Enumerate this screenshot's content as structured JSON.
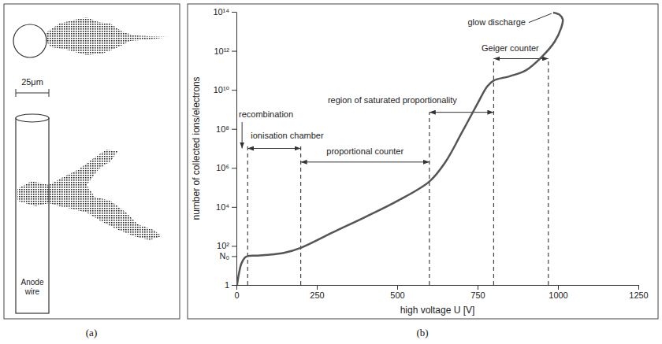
{
  "diagram": {
    "label": "(a)",
    "scale_label": "25μm",
    "wire_label": "Anode wire"
  },
  "chart_data": {
    "type": "line",
    "panel_label": "(b)",
    "x_label": "high voltage U [V]",
    "y_label": "number of collected ions/electrons",
    "x": [
      2,
      8,
      15,
      25,
      35,
      60,
      100,
      150,
      200,
      300,
      400,
      500,
      600,
      650,
      700,
      750,
      780,
      800,
      850,
      900,
      950,
      990,
      1010,
      1015,
      1005,
      985
    ],
    "series": [
      {
        "color": "#555555",
        "values": [
          1,
          4,
          12,
          24,
          30,
          32,
          35,
          45,
          80,
          500,
          3000,
          20000,
          200000,
          2000000,
          60000000,
          2000000000,
          15000000000,
          30000000000,
          50000000000,
          100000000000,
          500000000000,
          3000000000000,
          15000000000000,
          40000000000000,
          70000000000000,
          90000000000000
        ]
      }
    ],
    "xlim": [
      0,
      1250
    ],
    "xticks": [
      0,
      250,
      500,
      750,
      1000,
      1250
    ],
    "ylim": [
      1,
      100000000000000
    ],
    "yticks": [
      1,
      {
        "value": 30,
        "label": "N₀"
      },
      {
        "value": 100,
        "label": "10²"
      },
      {
        "value": 10000,
        "label": "10⁴"
      },
      {
        "value": 1000000,
        "label": "10⁶"
      },
      {
        "value": 100000000,
        "label": "10⁸"
      },
      {
        "value": 10000000000,
        "label": "10¹⁰"
      },
      {
        "value": 1000000000000,
        "label": "10¹²"
      },
      {
        "value": 100000000000000,
        "label": "10¹⁴"
      }
    ],
    "log": "y",
    "regions": [
      {
        "label": "recombination",
        "from": 0,
        "to": 35
      },
      {
        "label": "ionisation chamber",
        "from": 35,
        "to": 200
      },
      {
        "label": "proportional counter",
        "from": 200,
        "to": 600
      },
      {
        "label": "region of saturated proportionality",
        "from": 600,
        "to": 800
      },
      {
        "label": "Geiger counter",
        "from": 800,
        "to": 970
      }
    ],
    "annotation": "glow discharge"
  }
}
